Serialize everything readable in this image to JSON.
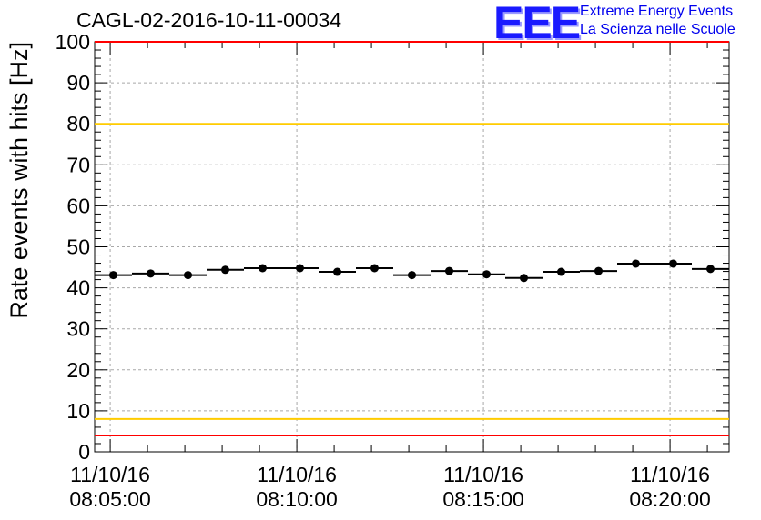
{
  "header": {
    "title": "CAGL-02-2016-10-11-00034",
    "logo_mark": "EEE",
    "logo_line1": "Extreme Energy Events",
    "logo_line2": "La Scienza nelle Scuole"
  },
  "chart_data": {
    "type": "scatter",
    "title": "CAGL-02-2016-10-11-00034",
    "xlabel": "",
    "ylabel": "Rate events with hits [Hz]",
    "ylim": [
      0,
      100
    ],
    "yticks": [
      0,
      10,
      20,
      30,
      40,
      50,
      60,
      70,
      80,
      90,
      100
    ],
    "xlim": [
      "08:04:35",
      "08:21:35"
    ],
    "xticks": [
      {
        "time": "08:05:00",
        "date_label": "11/10/16",
        "time_label": "08:05:00"
      },
      {
        "time": "08:10:00",
        "date_label": "11/10/16",
        "time_label": "08:10:00"
      },
      {
        "time": "08:15:00",
        "date_label": "11/10/16",
        "time_label": "08:15:00"
      },
      {
        "time": "08:20:00",
        "date_label": "11/10/16",
        "time_label": "08:20:00"
      }
    ],
    "grid": true,
    "bin_width_seconds": 60,
    "series": [
      {
        "color": "#000000",
        "points": [
          {
            "t": "08:05:05",
            "y": 43.1
          },
          {
            "t": "08:06:05",
            "y": 43.5
          },
          {
            "t": "08:07:05",
            "y": 43.1
          },
          {
            "t": "08:08:05",
            "y": 44.4
          },
          {
            "t": "08:09:05",
            "y": 44.8
          },
          {
            "t": "08:10:05",
            "y": 44.8
          },
          {
            "t": "08:11:05",
            "y": 43.9
          },
          {
            "t": "08:12:05",
            "y": 44.8
          },
          {
            "t": "08:13:05",
            "y": 43.1
          },
          {
            "t": "08:14:05",
            "y": 44.1
          },
          {
            "t": "08:15:05",
            "y": 43.3
          },
          {
            "t": "08:16:05",
            "y": 42.4
          },
          {
            "t": "08:17:05",
            "y": 43.9
          },
          {
            "t": "08:18:05",
            "y": 44.1
          },
          {
            "t": "08:19:05",
            "y": 45.9
          },
          {
            "t": "08:20:05",
            "y": 45.9
          },
          {
            "t": "08:21:05",
            "y": 44.6
          }
        ]
      }
    ],
    "reference_lines": [
      {
        "y": 100,
        "color": "#ff0000"
      },
      {
        "y": 80,
        "color": "#ffcc00"
      },
      {
        "y": 8,
        "color": "#ffcc00"
      },
      {
        "y": 4,
        "color": "#ff0000"
      }
    ]
  }
}
